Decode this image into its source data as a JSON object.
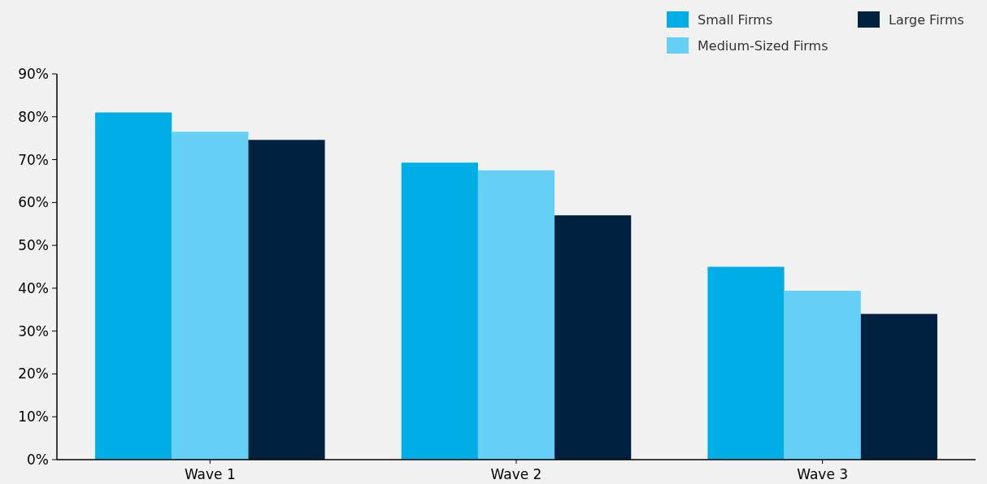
{
  "chart_data": {
    "type": "bar",
    "categories": [
      "Wave 1",
      "Wave 2",
      "Wave 3"
    ],
    "series": [
      {
        "name": "Small Firms",
        "color": "#00aee6",
        "values": [
          81,
          69.3,
          45
        ]
      },
      {
        "name": "Medium-Sized Firms",
        "color": "#66cff5",
        "values": [
          76.5,
          67.5,
          39.4
        ]
      },
      {
        "name": "Large Firms",
        "color": "#00213f",
        "values": [
          74.6,
          57,
          34
        ]
      }
    ],
    "ylim": [
      0,
      90
    ],
    "yticks": [
      {
        "value": 0,
        "label": "0%"
      },
      {
        "value": 10,
        "label": "10%"
      },
      {
        "value": 20,
        "label": "20%"
      },
      {
        "value": 30,
        "label": "30%"
      },
      {
        "value": 40,
        "label": "40%"
      },
      {
        "value": 50,
        "label": "50%"
      },
      {
        "value": 60,
        "label": "60%"
      },
      {
        "value": 70,
        "label": "70%"
      },
      {
        "value": 80,
        "label": "80%"
      },
      {
        "value": 90,
        "label": "90%"
      }
    ],
    "legend": "top right",
    "grid": false
  }
}
